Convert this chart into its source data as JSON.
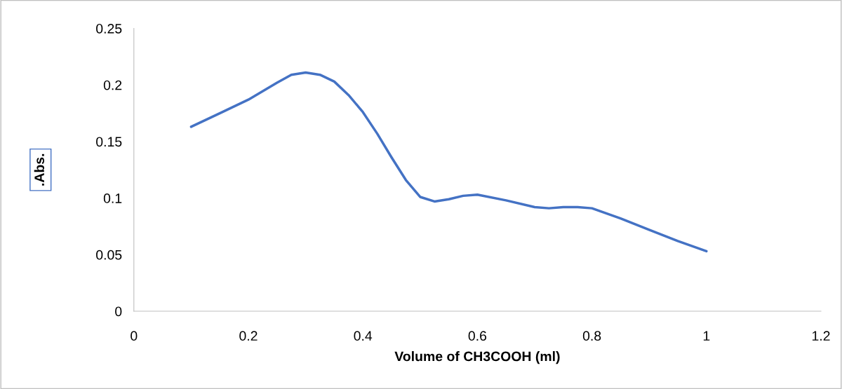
{
  "chart_data": {
    "type": "line",
    "xlabel": "Volume of CH3COOH (ml)",
    "ylabel": ".Abs.",
    "x": [
      0.1,
      0.15,
      0.2,
      0.25,
      0.275,
      0.3,
      0.325,
      0.35,
      0.375,
      0.4,
      0.425,
      0.45,
      0.475,
      0.5,
      0.525,
      0.55,
      0.575,
      0.6,
      0.65,
      0.7,
      0.725,
      0.75,
      0.775,
      0.8,
      0.85,
      0.9,
      0.95,
      1.0
    ],
    "series": [
      {
        "color": "#4472c4",
        "values": [
          0.163,
          0.175,
          0.187,
          0.202,
          0.209,
          0.211,
          0.209,
          0.203,
          0.191,
          0.176,
          0.157,
          0.136,
          0.116,
          0.101,
          0.097,
          0.099,
          0.102,
          0.103,
          0.098,
          0.092,
          0.091,
          0.092,
          0.092,
          0.091,
          0.082,
          0.072,
          0.062,
          0.053
        ]
      }
    ],
    "xlim": [
      0,
      1.2
    ],
    "xticks": [
      0,
      0.2,
      0.4,
      0.6,
      0.8,
      1,
      1.2
    ],
    "ylim": [
      0,
      0.25
    ],
    "yticks": [
      0,
      0.05,
      0.1,
      0.15,
      0.2,
      0.25
    ],
    "grid": false,
    "legend": false,
    "marker": "none",
    "line_style": "solid"
  }
}
